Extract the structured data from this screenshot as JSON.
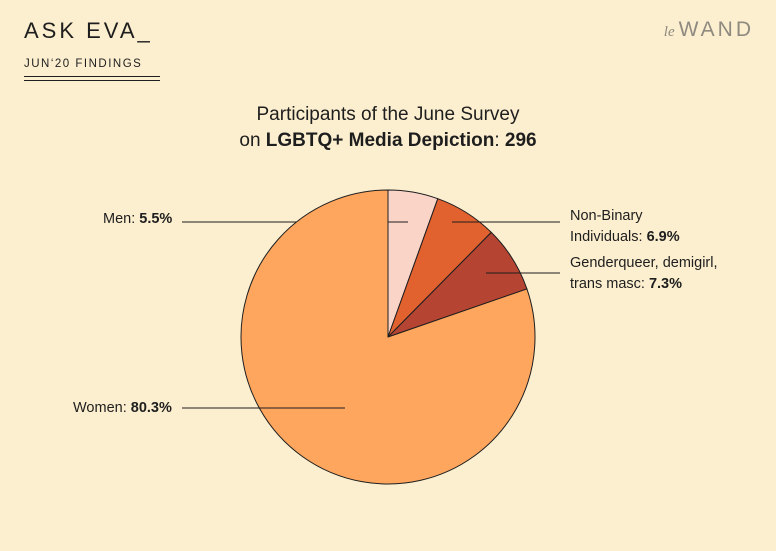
{
  "header": {
    "title": "ASK EVA_",
    "subtitle": "JUN‘20 FINDINGS",
    "logo_prefix": "le",
    "logo_main": "WAND"
  },
  "chart_data": {
    "type": "pie",
    "title_line1": "Participants of the June Survey",
    "title_prefix": "on",
    "title_bold": "LGBTQ+ Media Depiction",
    "title_sep": ":",
    "title_total": "296",
    "start": "12 o'clock, clockwise",
    "slices": [
      {
        "name": "Men",
        "value": 5.5,
        "display": "5.5%",
        "color": "#fbd4c8",
        "label_lines": [
          "Men: "
        ]
      },
      {
        "name": "Non-Binary Individuals",
        "value": 6.9,
        "display": "6.9%",
        "color": "#e1612f",
        "label_lines": [
          "Non-Binary",
          "Individuals: "
        ]
      },
      {
        "name": "Genderqueer, demigirl, trans masc",
        "value": 7.3,
        "display": "7.3%",
        "color": "#b54433",
        "label_lines": [
          "Genderqueer, demigirl,",
          "trans masc: "
        ]
      },
      {
        "name": "Women",
        "value": 80.3,
        "display": "80.3%",
        "color": "#fea65e",
        "label_lines": [
          "Women: "
        ]
      }
    ]
  }
}
